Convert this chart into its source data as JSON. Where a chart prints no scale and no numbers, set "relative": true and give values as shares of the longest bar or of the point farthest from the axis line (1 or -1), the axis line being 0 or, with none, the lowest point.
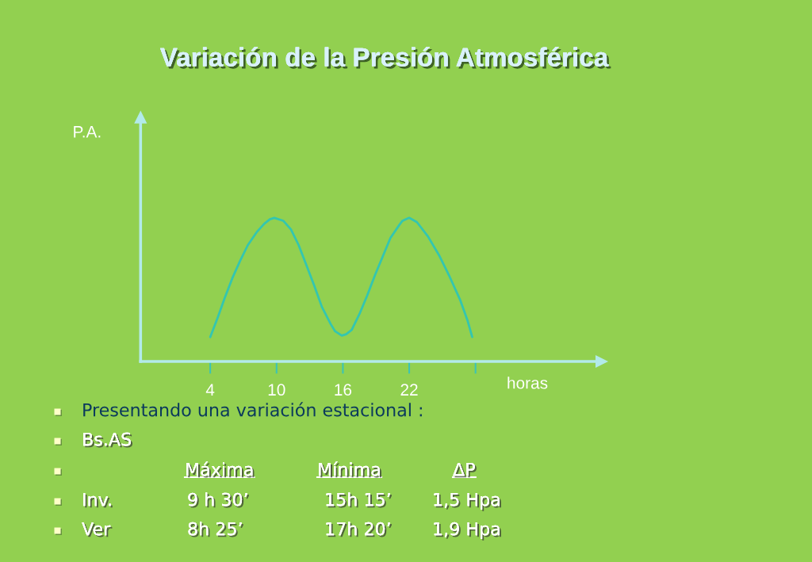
{
  "chart_data": {
    "type": "line",
    "title": "Variación de la Presión Atmosférica",
    "xlabel": "horas",
    "x": [
      4.0,
      4.7,
      5.3,
      6.0,
      6.7,
      7.4,
      8.2,
      8.9,
      9.4,
      9.8,
      10.6,
      11.3,
      12.0,
      12.7,
      13.4,
      14.1,
      14.9,
      15.3,
      15.9,
      16.3,
      16.8,
      17.5,
      18.2,
      18.9,
      19.6,
      20.3,
      21.1,
      21.4,
      22.0,
      22.7,
      23.7,
      24.7,
      25.6,
      26.6,
      27.3,
      27.7
    ],
    "values": [
      0.17,
      0.31,
      0.44,
      0.58,
      0.7,
      0.81,
      0.9,
      0.96,
      0.99,
      1,
      0.98,
      0.92,
      0.81,
      0.67,
      0.53,
      0.38,
      0.26,
      0.21,
      0.18,
      0.19,
      0.22,
      0.33,
      0.46,
      0.6,
      0.73,
      0.86,
      0.95,
      0.98,
      1,
      0.97,
      0.87,
      0.74,
      0.6,
      0.43,
      0.28,
      0.17
    ],
    "color": "#33c6b0",
    "relative": true,
    "xlim": [
      -2.3,
      39.4
    ],
    "xticks": [
      4,
      10,
      16,
      22,
      {
        "value": 28,
        "label": null
      }
    ],
    "tick_labels": "x",
    "annotations": [
      "P.A.",
      "Presentando una variación estacional :",
      "Bs.AS",
      "Máxima",
      "Mínima",
      "ΔP",
      "Inv.",
      "9 h 30’",
      "15h 15’",
      "1,5 Hpa",
      "Ver",
      "8h 25’",
      "17h 20’",
      "1,9 Hpa"
    ]
  }
}
